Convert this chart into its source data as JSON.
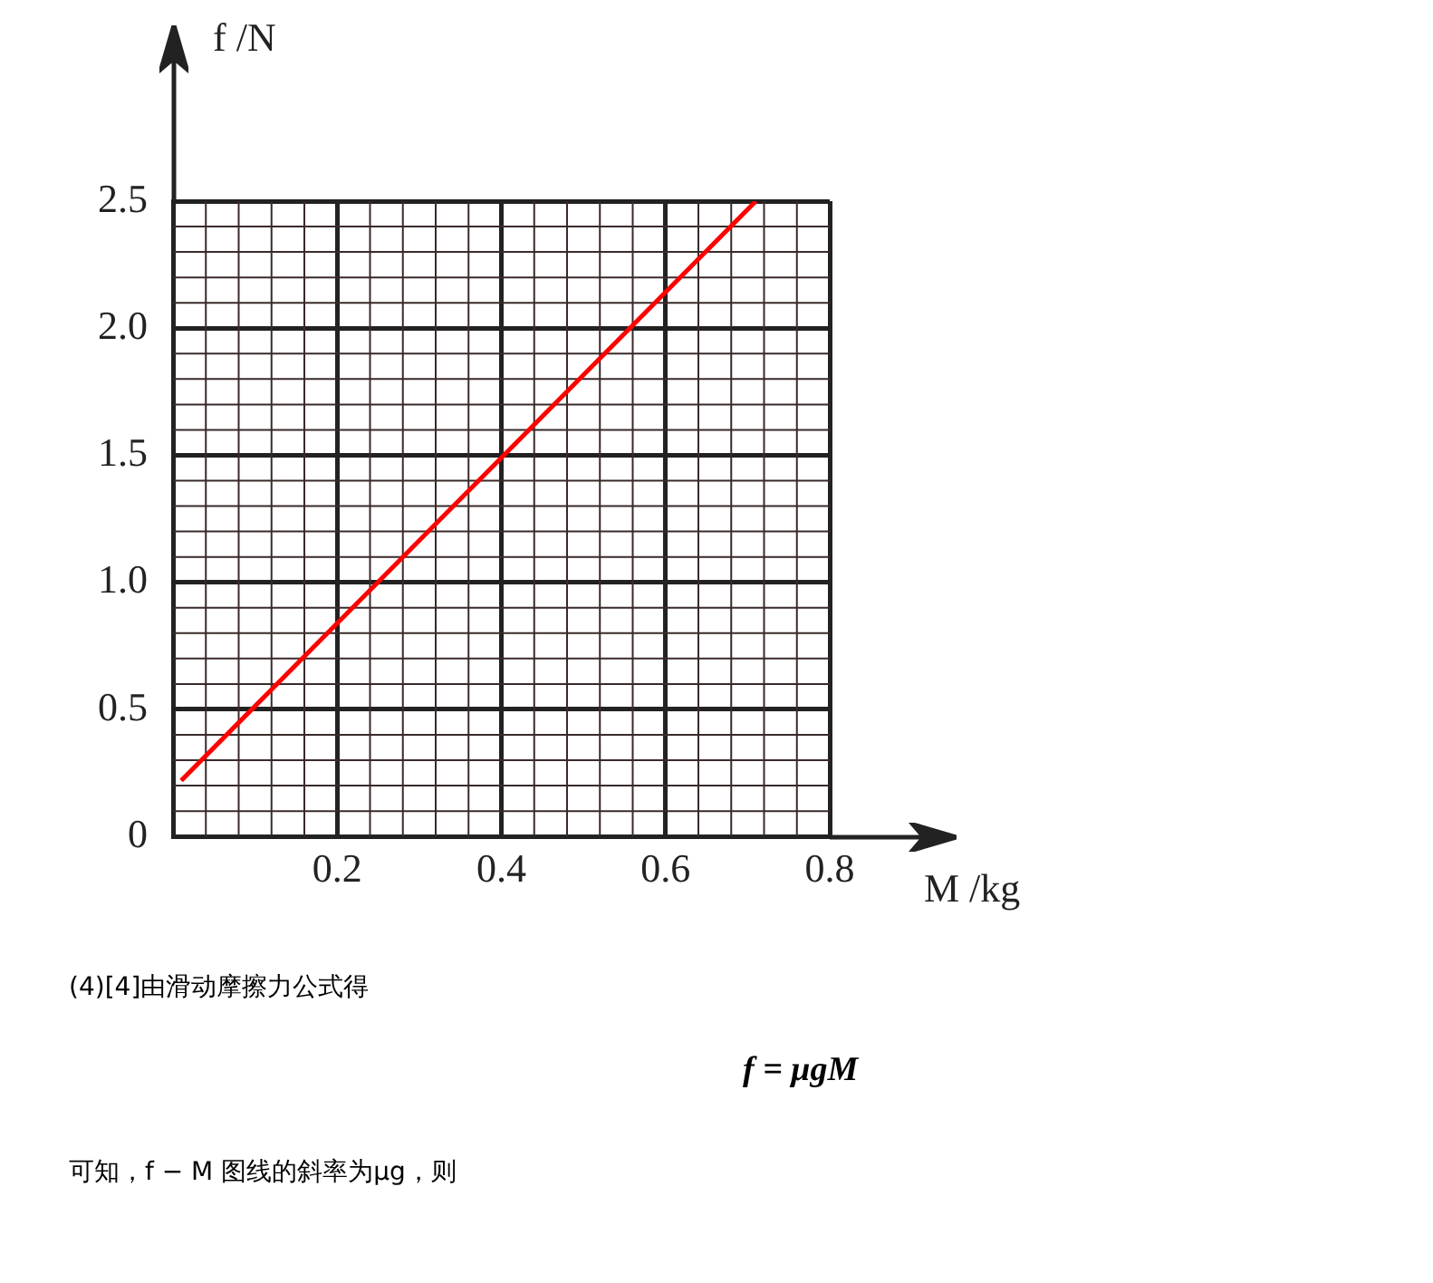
{
  "chart_data": {
    "type": "line",
    "xlabel": "M /kg",
    "ylabel": "f /N",
    "series": [
      {
        "color": "#ff0000",
        "x": [
          0.01,
          0.71
        ],
        "values": [
          0.22,
          2.5
        ]
      }
    ],
    "xlim": [
      0,
      0.8
    ],
    "xticks": [
      {
        "value": 0,
        "label": null
      },
      0.2,
      0.4,
      0.6,
      0.8
    ],
    "ylim": [
      0,
      2.5
    ],
    "yticks": [
      0,
      0.5,
      {
        "value": 1,
        "label": "1.0"
      },
      1.5,
      {
        "value": 2,
        "label": "2.0"
      },
      2.5
    ],
    "grid": true,
    "legend": false,
    "marker": "none",
    "line_style": "solid",
    "annotations": [
      "(4)[4]由滑动摩擦力公式得",
      "f = μgM",
      "可知，f − M 图线的斜率为μg，则"
    ]
  }
}
